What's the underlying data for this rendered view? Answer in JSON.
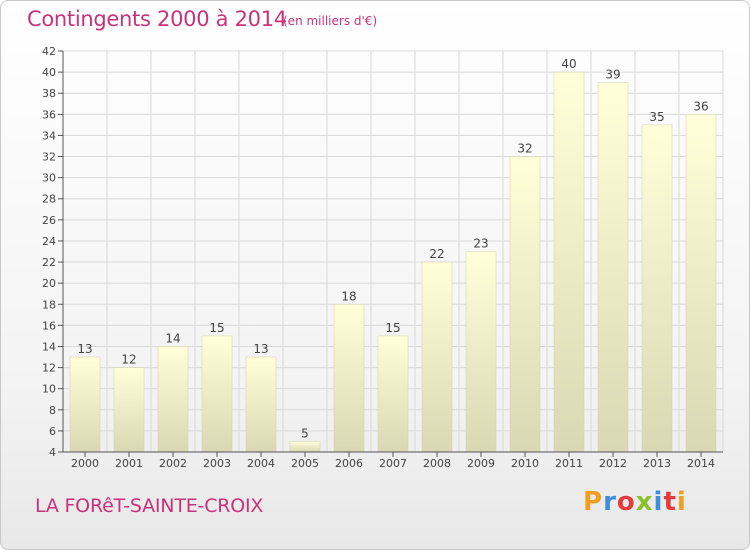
{
  "header": {
    "title": "Contingents 2000 à 2014",
    "subtitle": "(en milliers d'€)"
  },
  "footer": {
    "commune": "LA FORêT-SAINTE-CROIX",
    "logo_text": "Proxiti"
  },
  "colors": {
    "title": "#c8327a",
    "bar_top": "#ffffd8",
    "bar_bottom": "#d8d8b4",
    "grid": "#d9d9d9"
  },
  "chart_data": {
    "type": "bar",
    "title": "Contingents 2000 à 2014",
    "subtitle": "(en milliers d'€)",
    "categories": [
      "2000",
      "2001",
      "2002",
      "2003",
      "2004",
      "2005",
      "2006",
      "2007",
      "2008",
      "2009",
      "2010",
      "2011",
      "2012",
      "2013",
      "2014"
    ],
    "values": [
      13,
      12,
      14,
      15,
      13,
      5,
      18,
      15,
      22,
      23,
      32,
      40,
      39,
      35,
      36
    ],
    "ylim": [
      4,
      42
    ],
    "yticks": [
      4,
      6,
      8,
      10,
      12,
      14,
      16,
      18,
      20,
      22,
      24,
      26,
      28,
      30,
      32,
      34,
      36,
      38,
      40,
      42
    ],
    "xlabel": "",
    "ylabel": "",
    "grid": true,
    "data_labels": true
  }
}
